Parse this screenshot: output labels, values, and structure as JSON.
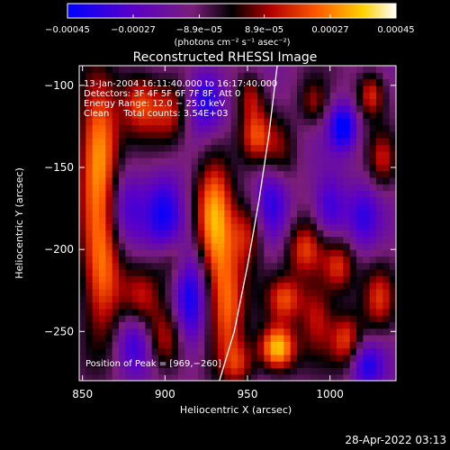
{
  "chart_data": {
    "type": "heatmap",
    "title": "Reconstructed RHESSI Image",
    "xlabel": "Heliocentric X (arcsec)",
    "ylabel": "Heliocentric Y (arcsec)",
    "xlim": [
      848,
      1040
    ],
    "ylim": [
      -280,
      -88
    ],
    "x_ticks": [
      850,
      900,
      950,
      1000
    ],
    "x_tick_labels": [
      "850",
      "900",
      "950",
      "1000"
    ],
    "y_ticks": [
      -100,
      -150,
      -200,
      -250
    ],
    "y_tick_labels": [
      "−100",
      "−150",
      "−200",
      "−250"
    ],
    "colorbar": {
      "min": -0.00045,
      "max": 0.00045,
      "ticks": [
        -0.00045,
        -0.00027,
        -8.9e-05,
        8.9e-05,
        0.00027,
        0.00045
      ],
      "tick_labels": [
        "−0.00045",
        "−0.00027",
        "−8.9e−05",
        "8.9e−05",
        "0.00027",
        "0.00045"
      ],
      "units_label": "(photons cm⁻² s⁻¹ asec⁻²)"
    },
    "info_lines": [
      "13-Jan-2004 16:11:40.000 to 16:17:40.000",
      "Detectors: 3F 4F 5F 6F 7F 8F, Att 0",
      "Energy Range: 12.0 − 25.0 keV",
      "Clean     Total counts: 3.54E+03"
    ],
    "peak_label": "Position of Peak = [969,−260]",
    "peak": [
      969,
      -260
    ],
    "limb_curve": {
      "x": [
        933,
        942,
        950,
        957,
        963,
        968
      ],
      "y": [
        -280,
        -250,
        -210,
        -170,
        -130,
        -88
      ]
    },
    "blobs": [
      {
        "x": 860,
        "y": -140,
        "v": 0.00045,
        "sx": 9,
        "sy": 30
      },
      {
        "x": 862,
        "y": -215,
        "v": 0.00038,
        "sx": 9,
        "sy": 28
      },
      {
        "x": 885,
        "y": -110,
        "v": 0.0003,
        "sx": 8,
        "sy": 14
      },
      {
        "x": 903,
        "y": -115,
        "v": 0.00025,
        "sx": 8,
        "sy": 14
      },
      {
        "x": 885,
        "y": -230,
        "v": 0.00022,
        "sx": 8,
        "sy": 14
      },
      {
        "x": 900,
        "y": -255,
        "v": 0.00027,
        "sx": 9,
        "sy": 14
      },
      {
        "x": 905,
        "y": -205,
        "v": 0.00018,
        "sx": 8,
        "sy": 12
      },
      {
        "x": 900,
        "y": -180,
        "v": -0.00028,
        "sx": 8,
        "sy": 18
      },
      {
        "x": 875,
        "y": -175,
        "v": -0.00022,
        "sx": 8,
        "sy": 18
      },
      {
        "x": 882,
        "y": -255,
        "v": -0.00025,
        "sx": 8,
        "sy": 14
      },
      {
        "x": 925,
        "y": -108,
        "v": -0.0003,
        "sx": 8,
        "sy": 14
      },
      {
        "x": 930,
        "y": -180,
        "v": 0.0004,
        "sx": 8,
        "sy": 30
      },
      {
        "x": 938,
        "y": -235,
        "v": 0.00033,
        "sx": 8,
        "sy": 25
      },
      {
        "x": 945,
        "y": -270,
        "v": 0.00022,
        "sx": 7,
        "sy": 10
      },
      {
        "x": 915,
        "y": -230,
        "v": -0.0003,
        "sx": 7,
        "sy": 25
      },
      {
        "x": 955,
        "y": -130,
        "v": 0.00028,
        "sx": 7,
        "sy": 12
      },
      {
        "x": 952,
        "y": -105,
        "v": 0.00022,
        "sx": 6,
        "sy": 10
      },
      {
        "x": 950,
        "y": -190,
        "v": 0.00025,
        "sx": 7,
        "sy": 14
      },
      {
        "x": 965,
        "y": -170,
        "v": -0.00022,
        "sx": 7,
        "sy": 18
      },
      {
        "x": 968,
        "y": -260,
        "v": 0.0005,
        "sx": 8,
        "sy": 10
      },
      {
        "x": 973,
        "y": -230,
        "v": 0.0003,
        "sx": 8,
        "sy": 10
      },
      {
        "x": 970,
        "y": -140,
        "v": 0.00018,
        "sx": 7,
        "sy": 14
      },
      {
        "x": 985,
        "y": -200,
        "v": 0.0003,
        "sx": 8,
        "sy": 12
      },
      {
        "x": 990,
        "y": -110,
        "v": 0.0002,
        "sx": 6,
        "sy": 10
      },
      {
        "x": 992,
        "y": -240,
        "v": 0.00025,
        "sx": 7,
        "sy": 16
      },
      {
        "x": 1000,
        "y": -175,
        "v": -0.00025,
        "sx": 7,
        "sy": 14
      },
      {
        "x": 1008,
        "y": -125,
        "v": -0.00035,
        "sx": 6,
        "sy": 10
      },
      {
        "x": 1005,
        "y": -210,
        "v": 0.0003,
        "sx": 7,
        "sy": 12
      },
      {
        "x": 1010,
        "y": -255,
        "v": 0.0003,
        "sx": 7,
        "sy": 12
      },
      {
        "x": 1025,
        "y": -105,
        "v": 0.0003,
        "sx": 6,
        "sy": 10
      },
      {
        "x": 1032,
        "y": -145,
        "v": 0.00022,
        "sx": 6,
        "sy": 12
      },
      {
        "x": 1030,
        "y": -230,
        "v": 0.00025,
        "sx": 7,
        "sy": 14
      },
      {
        "x": 1020,
        "y": -180,
        "v": -0.0002,
        "sx": 7,
        "sy": 14
      },
      {
        "x": 1022,
        "y": -270,
        "v": -0.00025,
        "sx": 7,
        "sy": 10
      }
    ]
  },
  "footer": {
    "timestamp": "28-Apr-2022 03:13"
  }
}
